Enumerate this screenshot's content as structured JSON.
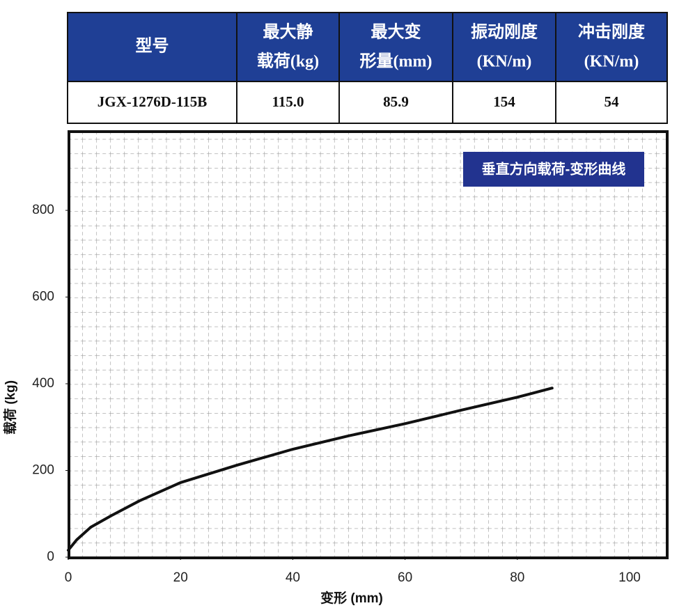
{
  "table": {
    "header": [
      [
        "型号"
      ],
      [
        "最大静",
        "载荷(kg)"
      ],
      [
        "最大变",
        "形量(mm)"
      ],
      [
        "振动刚度",
        "(KN/m)"
      ],
      [
        "冲击刚度",
        "(KN/m)"
      ]
    ],
    "rows": [
      [
        "JGX-1276D-115B",
        "115.0",
        "85.9",
        "154",
        "54"
      ]
    ]
  },
  "chart_data": {
    "type": "line",
    "title": "垂直方向载荷-变形曲线",
    "x_label": "变形 (mm)",
    "y_label": "载荷 (kg)",
    "x": [
      0,
      1.5,
      4,
      7.7,
      12.7,
      20,
      30,
      40,
      50,
      60,
      70,
      80,
      86.2
    ],
    "series": [
      {
        "color": "#111111",
        "values": [
          16,
          40,
          69,
          96,
          130,
          172,
          212,
          249,
          280,
          308,
          339,
          369,
          390
        ]
      }
    ],
    "xlim": [
      0,
      106.7
    ],
    "ylim": [
      0,
      980
    ],
    "xticks": [
      0,
      20,
      40,
      60,
      80,
      100
    ],
    "yticks": [
      0,
      200,
      400,
      600,
      800
    ],
    "grid": true
  }
}
